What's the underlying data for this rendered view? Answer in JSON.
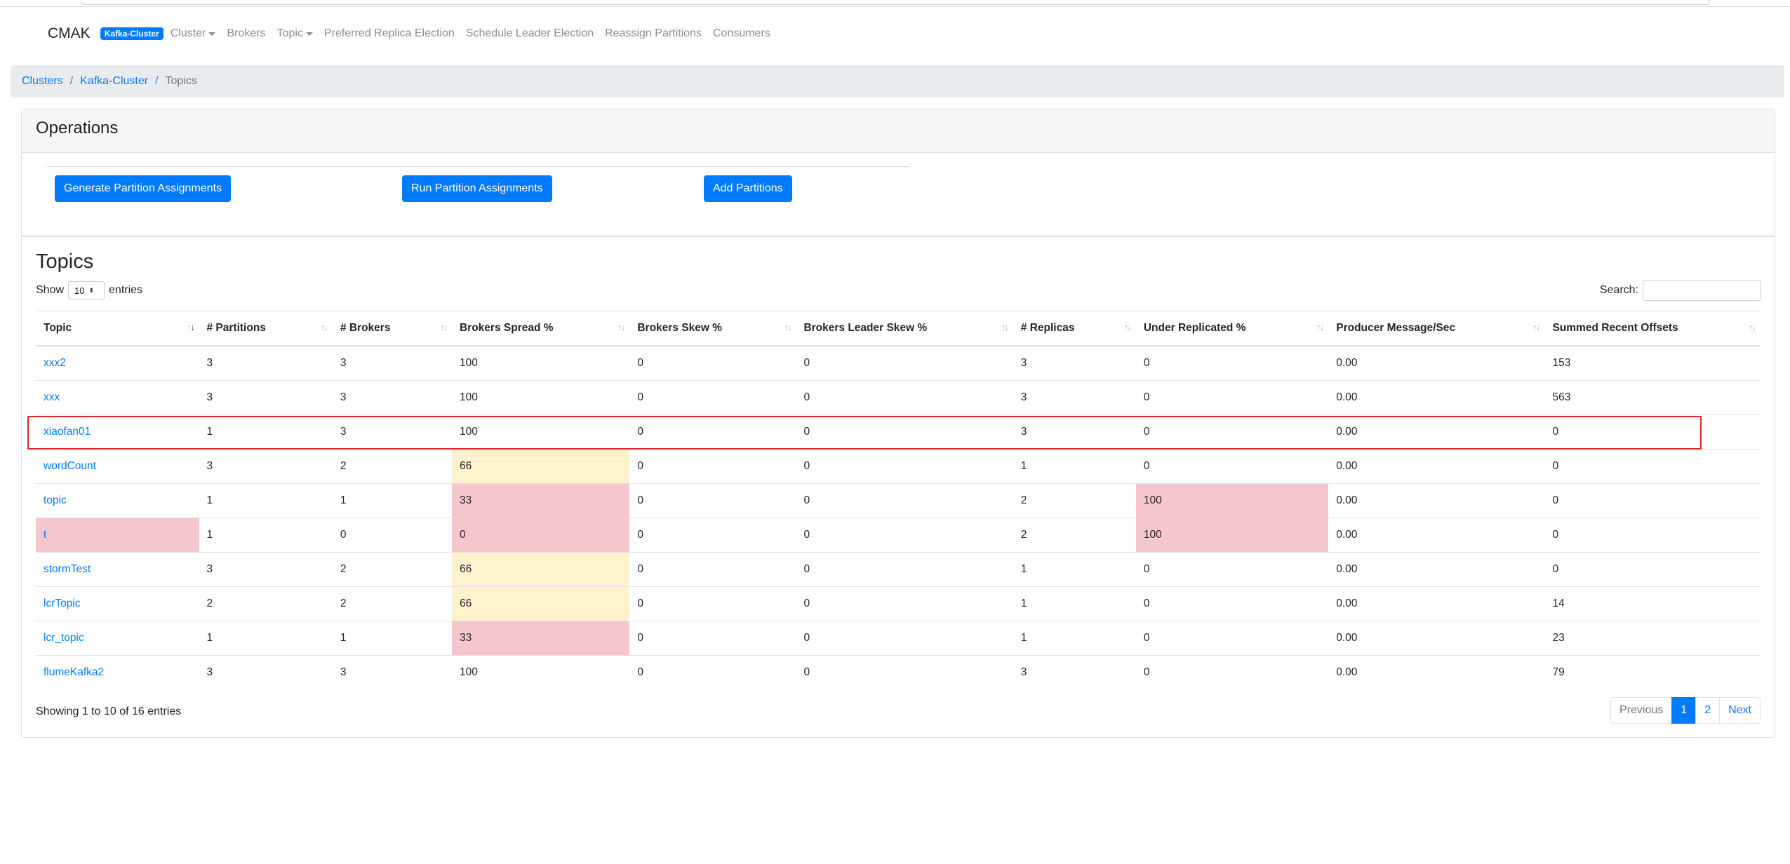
{
  "nav": {
    "brand": "CMAK",
    "cluster_badge": "Kafka-Cluster",
    "items": [
      {
        "label": "Cluster",
        "dropdown": true
      },
      {
        "label": "Brokers",
        "dropdown": false
      },
      {
        "label": "Topic",
        "dropdown": true
      },
      {
        "label": "Preferred Replica Election",
        "dropdown": false
      },
      {
        "label": "Schedule Leader Election",
        "dropdown": false
      },
      {
        "label": "Reassign Partitions",
        "dropdown": false
      },
      {
        "label": "Consumers",
        "dropdown": false
      }
    ]
  },
  "breadcrumb": {
    "items": [
      "Clusters",
      "Kafka-Cluster"
    ],
    "active": "Topics"
  },
  "operations": {
    "title": "Operations",
    "buttons": [
      "Generate Partition Assignments",
      "Run Partition Assignments",
      "Add Partitions"
    ]
  },
  "topics": {
    "title": "Topics",
    "show_label": "Show",
    "page_length": "10",
    "entries_label": "entries",
    "search_label": "Search:",
    "search_value": "",
    "columns": [
      "Topic",
      "# Partitions",
      "# Brokers",
      "Brokers Spread %",
      "Brokers Skew %",
      "Brokers Leader Skew %",
      "# Replicas",
      "Under Replicated %",
      "Producer Message/Sec",
      "Summed Recent Offsets"
    ],
    "rows": [
      [
        "xxx2",
        "3",
        "3",
        "100",
        "0",
        "0",
        "3",
        "0",
        "0.00",
        "153"
      ],
      [
        "xxx",
        "3",
        "3",
        "100",
        "0",
        "0",
        "3",
        "0",
        "0.00",
        "563"
      ],
      [
        "xiaofan01",
        "1",
        "3",
        "100",
        "0",
        "0",
        "3",
        "0",
        "0.00",
        "0"
      ],
      [
        "wordCount",
        "3",
        "2",
        "66",
        "0",
        "0",
        "1",
        "0",
        "0.00",
        "0"
      ],
      [
        "topic",
        "1",
        "1",
        "33",
        "0",
        "0",
        "2",
        "100",
        "0.00",
        "0"
      ],
      [
        "t",
        "1",
        "0",
        "0",
        "0",
        "0",
        "2",
        "100",
        "0.00",
        "0"
      ],
      [
        "stormTest",
        "3",
        "2",
        "66",
        "0",
        "0",
        "1",
        "0",
        "0.00",
        "0"
      ],
      [
        "lcrTopic",
        "2",
        "2",
        "66",
        "0",
        "0",
        "1",
        "0",
        "0.00",
        "14"
      ],
      [
        "lcr_topic",
        "1",
        "1",
        "33",
        "0",
        "0",
        "1",
        "0",
        "0.00",
        "23"
      ],
      [
        "flumeKafka2",
        "3",
        "3",
        "100",
        "0",
        "0",
        "3",
        "0",
        "0.00",
        "79"
      ]
    ],
    "highlighted_row": "xiaofan01",
    "info": "Showing 1 to 10 of 16 entries",
    "pagination": {
      "previous": "Previous",
      "pages": [
        "1",
        "2"
      ],
      "current": "1",
      "next": "Next"
    }
  },
  "colors": {
    "primary": "#007bff",
    "warning_cell": "#fff3cd",
    "danger_cell": "#f5c6cb",
    "highlight_border": "#e0272d"
  }
}
